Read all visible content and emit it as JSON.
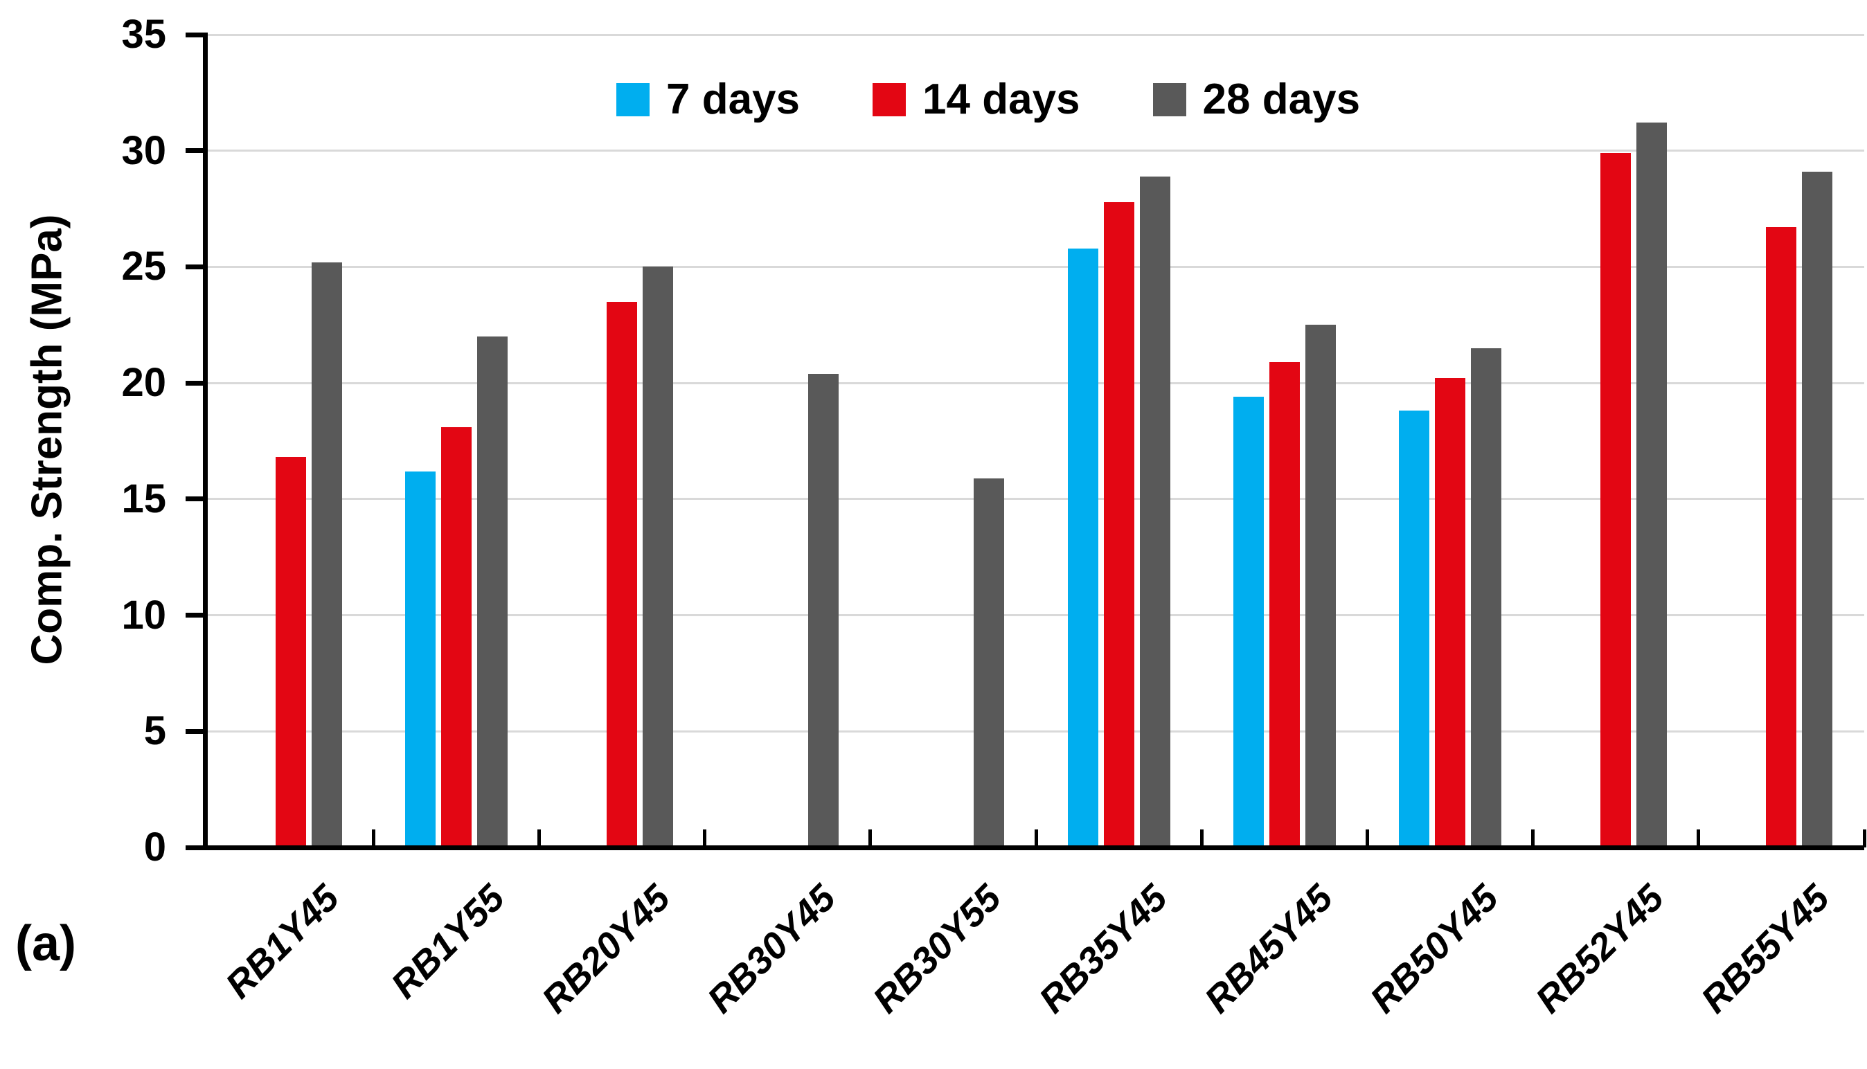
{
  "figure": {
    "panel_label": "(a)",
    "background": "#ffffff"
  },
  "colors": {
    "gridline": "#d9d9d9",
    "axis": "#000000",
    "series_7_days": "#00AEEF",
    "series_14_days": "#E30613",
    "series_28_days": "#595959"
  },
  "chart_data": {
    "type": "bar",
    "title": "",
    "xlabel": "",
    "ylabel": "Comp. Strength (MPa)",
    "ylim": [
      0,
      35
    ],
    "y_ticks": [
      0,
      5,
      10,
      15,
      20,
      25,
      30,
      35
    ],
    "grid": "horizontal",
    "legend_position": "top-center",
    "categories": [
      "RB1Y45",
      "RB1Y55",
      "RB20Y45",
      "RB30Y45",
      "RB30Y55",
      "RB35Y45",
      "RB45Y45",
      "RB50Y45",
      "RB52Y45",
      "RB55Y45"
    ],
    "series": [
      {
        "name": "7 days",
        "color": "#00AEEF",
        "values": [
          null,
          16.2,
          null,
          null,
          null,
          25.8,
          19.4,
          18.8,
          null,
          null
        ]
      },
      {
        "name": "14 days",
        "color": "#E30613",
        "values": [
          16.8,
          18.1,
          23.5,
          null,
          null,
          27.8,
          20.9,
          20.2,
          29.9,
          26.7
        ]
      },
      {
        "name": "28 days",
        "color": "#595959",
        "values": [
          25.2,
          22.0,
          25.0,
          20.4,
          15.9,
          28.9,
          22.5,
          21.5,
          31.2,
          29.1
        ]
      }
    ]
  }
}
